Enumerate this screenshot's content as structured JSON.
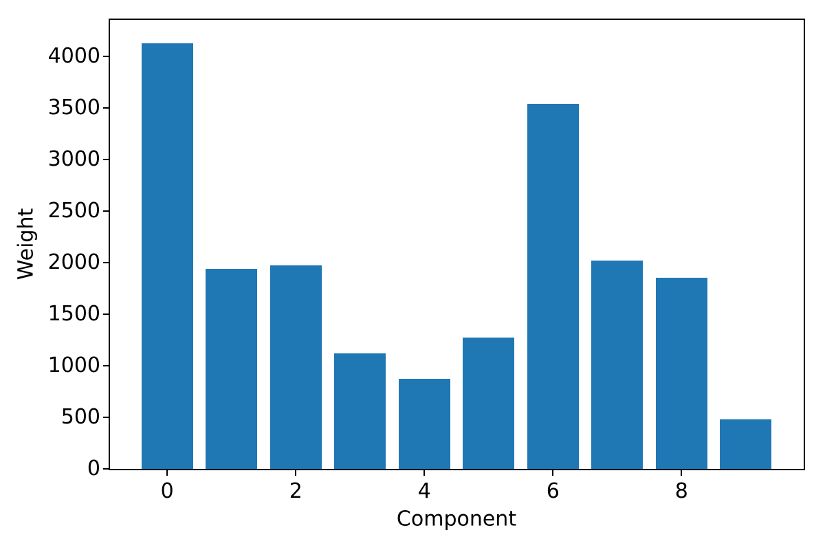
{
  "chart_data": {
    "type": "bar",
    "title": "",
    "xlabel": "Component",
    "ylabel": "Weight",
    "categories": [
      "0",
      "1",
      "2",
      "3",
      "4",
      "5",
      "6",
      "7",
      "8",
      "9"
    ],
    "x": [
      0,
      1,
      2,
      3,
      4,
      5,
      6,
      7,
      8,
      9
    ],
    "values": [
      4125,
      1940,
      1970,
      1120,
      870,
      1275,
      3540,
      2020,
      1850,
      480
    ],
    "bar_color": "#1f77b4",
    "bar_width": 0.8,
    "xlim": [
      -0.89,
      9.9
    ],
    "ylim": [
      0,
      4350
    ],
    "yticks": [
      0,
      500,
      1000,
      1500,
      2000,
      2500,
      3000,
      3500,
      4000
    ],
    "xticks": [
      0,
      2,
      4,
      6,
      8
    ],
    "grid": false,
    "legend": null
  }
}
